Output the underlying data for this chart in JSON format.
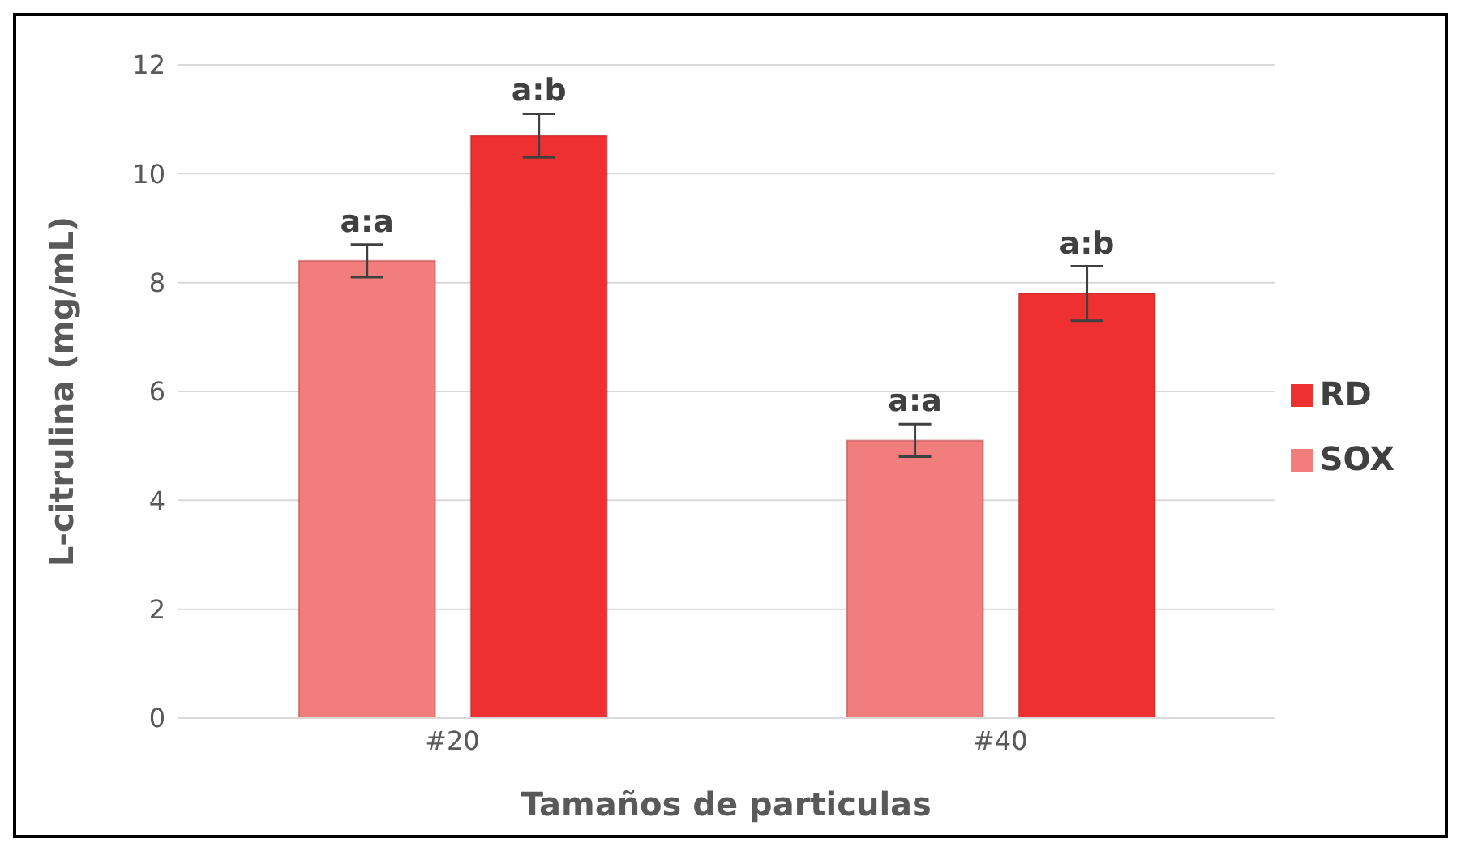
{
  "chart_data": {
    "type": "bar",
    "xlabel": "Tamaños de particulas",
    "ylabel": "L-citrulina (mg/mL)",
    "categories": [
      "#20",
      "#40"
    ],
    "series": [
      {
        "name": "SOX",
        "color": "#f27d7d",
        "values": [
          8.4,
          5.1
        ],
        "errors": [
          0.3,
          0.3
        ],
        "value_labels": [
          "a:a",
          "a:a"
        ]
      },
      {
        "name": "RD",
        "color": "#ee3030",
        "values": [
          10.7,
          7.8
        ],
        "errors": [
          0.4,
          0.5
        ],
        "value_labels": [
          "a:b",
          "a:b"
        ]
      }
    ],
    "ylim": [
      0,
      12
    ],
    "yticks": [
      0,
      2,
      4,
      6,
      8,
      10,
      12
    ],
    "grid": "y",
    "legend": "right"
  }
}
